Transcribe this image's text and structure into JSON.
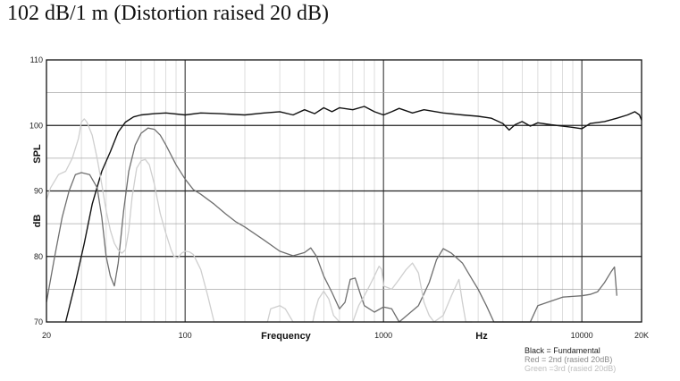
{
  "title": "102 dB/1 m (Distortion raised 20 dB)",
  "chart_data": {
    "type": "line",
    "title": "102 dB/1 m (Distortion raised 20 dB)",
    "xlabel": "Frequency",
    "xunit": "Hz",
    "ylabel": "SPL",
    "ylabel_unit": "dB",
    "xscale": "log",
    "xlim": [
      20,
      20000
    ],
    "ylim": [
      70,
      110
    ],
    "xticks": [
      {
        "value": 20,
        "label": "20"
      },
      {
        "value": 100,
        "label": "100"
      },
      {
        "value": 1000,
        "label": "1000"
      },
      {
        "value": 10000,
        "label": "10000"
      },
      {
        "value": 20000,
        "label": "20K"
      }
    ],
    "yticks": [
      {
        "value": 70,
        "label": "70"
      },
      {
        "value": 80,
        "label": "80"
      },
      {
        "value": 90,
        "label": "90"
      },
      {
        "value": 100,
        "label": "100"
      },
      {
        "value": 110,
        "label": "110"
      }
    ],
    "grid": true,
    "legend_position": "bottom-right",
    "legend": [
      "Black = Fundamental",
      "Red = 2nd (rasied 20dB)",
      "Green =3rd (rasied 20dB)"
    ],
    "series": [
      {
        "color": "#111111",
        "width": 1.4,
        "points": [
          [
            25,
            70
          ],
          [
            28,
            76
          ],
          [
            31,
            82
          ],
          [
            34,
            88
          ],
          [
            38,
            93
          ],
          [
            42,
            96
          ],
          [
            46,
            99
          ],
          [
            50,
            100.5
          ],
          [
            55,
            101.3
          ],
          [
            60,
            101.6
          ],
          [
            70,
            101.8
          ],
          [
            80,
            101.9
          ],
          [
            100,
            101.6
          ],
          [
            120,
            101.9
          ],
          [
            150,
            101.8
          ],
          [
            200,
            101.6
          ],
          [
            250,
            101.9
          ],
          [
            300,
            102.1
          ],
          [
            350,
            101.6
          ],
          [
            400,
            102.4
          ],
          [
            450,
            101.8
          ],
          [
            500,
            102.7
          ],
          [
            550,
            102.1
          ],
          [
            600,
            102.7
          ],
          [
            700,
            102.4
          ],
          [
            800,
            102.9
          ],
          [
            900,
            102.1
          ],
          [
            1000,
            101.6
          ],
          [
            1100,
            102.1
          ],
          [
            1200,
            102.6
          ],
          [
            1400,
            101.9
          ],
          [
            1600,
            102.4
          ],
          [
            2000,
            101.9
          ],
          [
            2500,
            101.6
          ],
          [
            3000,
            101.4
          ],
          [
            3500,
            101.1
          ],
          [
            4000,
            100.3
          ],
          [
            4300,
            99.3
          ],
          [
            4600,
            100.1
          ],
          [
            5000,
            100.6
          ],
          [
            5500,
            99.9
          ],
          [
            6000,
            100.4
          ],
          [
            7000,
            100.1
          ],
          [
            8000,
            99.9
          ],
          [
            9000,
            99.7
          ],
          [
            10000,
            99.5
          ],
          [
            11000,
            100.3
          ],
          [
            13000,
            100.6
          ],
          [
            15000,
            101.1
          ],
          [
            17000,
            101.6
          ],
          [
            18500,
            102.1
          ],
          [
            19500,
            101.6
          ],
          [
            20000,
            100.8
          ]
        ]
      },
      {
        "color": "#6f6f6f",
        "width": 1.3,
        "points": [
          [
            20,
            73
          ],
          [
            22,
            80
          ],
          [
            24,
            86
          ],
          [
            26,
            90
          ],
          [
            28,
            92.5
          ],
          [
            30,
            92.8
          ],
          [
            33,
            92.5
          ],
          [
            36,
            90.5
          ],
          [
            38,
            86
          ],
          [
            40,
            80
          ],
          [
            42,
            77
          ],
          [
            44,
            75.5
          ],
          [
            46,
            79
          ],
          [
            49,
            87
          ],
          [
            52,
            93
          ],
          [
            56,
            97
          ],
          [
            60,
            98.8
          ],
          [
            65,
            99.6
          ],
          [
            70,
            99.4
          ],
          [
            75,
            98.5
          ],
          [
            80,
            97
          ],
          [
            90,
            94
          ],
          [
            100,
            91.8
          ],
          [
            110,
            90.2
          ],
          [
            120,
            89.5
          ],
          [
            140,
            88
          ],
          [
            160,
            86.5
          ],
          [
            180,
            85.3
          ],
          [
            200,
            84.5
          ],
          [
            250,
            82.5
          ],
          [
            300,
            80.8
          ],
          [
            350,
            80.1
          ],
          [
            400,
            80.6
          ],
          [
            430,
            81.3
          ],
          [
            460,
            80
          ],
          [
            500,
            77
          ],
          [
            550,
            74.5
          ],
          [
            600,
            72
          ],
          [
            640,
            73
          ],
          [
            680,
            76.5
          ],
          [
            720,
            76.7
          ],
          [
            760,
            74.5
          ],
          [
            800,
            72.5
          ],
          [
            900,
            71.5
          ],
          [
            1000,
            72.3
          ],
          [
            1100,
            72
          ],
          [
            1200,
            70
          ],
          [
            1500,
            72.5
          ],
          [
            1700,
            76
          ],
          [
            1850,
            79.5
          ],
          [
            2000,
            81.2
          ],
          [
            2200,
            80.5
          ],
          [
            2500,
            79
          ],
          [
            2800,
            76.5
          ],
          [
            3000,
            75
          ],
          [
            3300,
            72.5
          ],
          [
            3600,
            70
          ],
          [
            5500,
            70
          ],
          [
            6000,
            72.5
          ],
          [
            7000,
            73.2
          ],
          [
            8000,
            73.8
          ],
          [
            9000,
            73.9
          ],
          [
            10000,
            74
          ],
          [
            11000,
            74.2
          ],
          [
            12000,
            74.6
          ],
          [
            13000,
            76
          ],
          [
            14000,
            77.6
          ],
          [
            14600,
            78.4
          ],
          [
            15000,
            74
          ]
        ]
      },
      {
        "color": "#cfcfcf",
        "width": 1.3,
        "points": [
          [
            20,
            88.7
          ],
          [
            21,
            90.5
          ],
          [
            23,
            92.5
          ],
          [
            25,
            93
          ],
          [
            27,
            95
          ],
          [
            29,
            98
          ],
          [
            30,
            100.5
          ],
          [
            31,
            101
          ],
          [
            32,
            100.5
          ],
          [
            34,
            98.5
          ],
          [
            36,
            95
          ],
          [
            38,
            91
          ],
          [
            40,
            87
          ],
          [
            42,
            84
          ],
          [
            44,
            82
          ],
          [
            46,
            81
          ],
          [
            48,
            80.5
          ],
          [
            50,
            81
          ],
          [
            52,
            84
          ],
          [
            54,
            89
          ],
          [
            57,
            93.5
          ],
          [
            60,
            94.6
          ],
          [
            63,
            94.8
          ],
          [
            66,
            94
          ],
          [
            70,
            91
          ],
          [
            75,
            86.5
          ],
          [
            80,
            83.5
          ],
          [
            85,
            81
          ],
          [
            88,
            80
          ],
          [
            92,
            79.8
          ],
          [
            96,
            80.5
          ],
          [
            100,
            80.8
          ],
          [
            105,
            80.7
          ],
          [
            110,
            80.3
          ],
          [
            120,
            78
          ],
          [
            130,
            74
          ],
          [
            140,
            70
          ],
          [
            260,
            70
          ],
          [
            270,
            72
          ],
          [
            300,
            72.5
          ],
          [
            320,
            72
          ],
          [
            350,
            70
          ],
          [
            440,
            70
          ],
          [
            450,
            71.5
          ],
          [
            470,
            73.5
          ],
          [
            500,
            74.7
          ],
          [
            530,
            73.5
          ],
          [
            560,
            71
          ],
          [
            600,
            70
          ],
          [
            700,
            70
          ],
          [
            750,
            72.5
          ],
          [
            800,
            74
          ],
          [
            850,
            75.5
          ],
          [
            900,
            77
          ],
          [
            950,
            78.5
          ],
          [
            980,
            78
          ],
          [
            1000,
            75.5
          ],
          [
            1100,
            75
          ],
          [
            1200,
            76.5
          ],
          [
            1300,
            78
          ],
          [
            1400,
            79
          ],
          [
            1500,
            77.5
          ],
          [
            1600,
            73
          ],
          [
            1700,
            71
          ],
          [
            1800,
            70
          ],
          [
            2000,
            71
          ],
          [
            2200,
            74
          ],
          [
            2400,
            76.5
          ],
          [
            2500,
            73
          ],
          [
            2600,
            70
          ],
          [
            2800,
            70
          ]
        ]
      }
    ]
  }
}
